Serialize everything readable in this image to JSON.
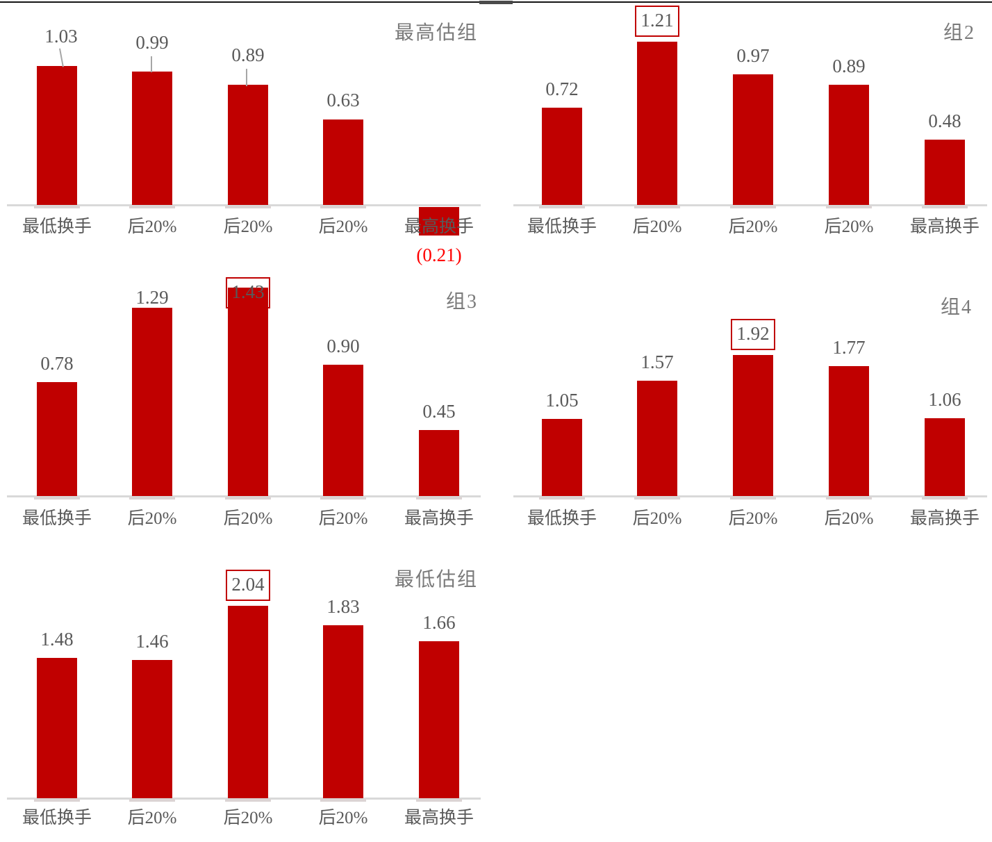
{
  "colors": {
    "bar_red": "#C00000",
    "highlight_box_border": "#C00000",
    "label_gray": "#595959",
    "title_gray": "#7A7A7A",
    "negative_red": "#FF0000",
    "axis_gray": "#D9D9D9",
    "bar_shadow_gray": "#DBD4D4",
    "leader_gray": "#A6A6A6",
    "top_rule_black": "#141414",
    "top_rule_segment_gray": "#4A4A4A"
  },
  "chart_data": [
    {
      "type": "bar",
      "title": "最高估组",
      "categories": [
        "最低换手",
        "后20%",
        "后20%",
        "后20%",
        "最高换手"
      ],
      "values": [
        1.03,
        0.99,
        0.89,
        0.63,
        -0.21
      ],
      "value_labels": [
        "1.03",
        "0.99",
        "0.89",
        "0.63",
        "(0.21)"
      ],
      "highlighted_box_index": null,
      "negative_index": 4,
      "leader_line_indices": [
        0,
        1,
        2
      ],
      "legend": "none",
      "grid": "off",
      "ylim": [
        -0.3,
        1.2
      ]
    },
    {
      "type": "bar",
      "title": "组2",
      "categories": [
        "最低换手",
        "后20%",
        "后20%",
        "后20%",
        "最高换手"
      ],
      "values": [
        0.72,
        1.21,
        0.97,
        0.89,
        0.48
      ],
      "value_labels": [
        "0.72",
        "1.21",
        "0.97",
        "0.89",
        "0.48"
      ],
      "highlighted_box_index": 1,
      "negative_index": null,
      "leader_line_indices": [],
      "legend": "none",
      "grid": "off",
      "ylim": [
        0,
        1.4
      ]
    },
    {
      "type": "bar",
      "title": "组3",
      "categories": [
        "最低换手",
        "后20%",
        "后20%",
        "后20%",
        "最高换手"
      ],
      "values": [
        0.78,
        1.29,
        1.43,
        0.9,
        0.45
      ],
      "value_labels": [
        "0.78",
        "1.29",
        "1.43",
        "0.90",
        "0.45"
      ],
      "highlighted_box_index": 2,
      "negative_index": null,
      "leader_line_indices": [],
      "legend": "none",
      "grid": "off",
      "ylim": [
        0,
        1.55
      ]
    },
    {
      "type": "bar",
      "title": "组4",
      "categories": [
        "最低换手",
        "后20%",
        "后20%",
        "后20%",
        "最高换手"
      ],
      "values": [
        1.05,
        1.57,
        1.92,
        1.77,
        1.06
      ],
      "value_labels": [
        "1.05",
        "1.57",
        "1.92",
        "1.77",
        "1.06"
      ],
      "highlighted_box_index": 2,
      "negative_index": null,
      "leader_line_indices": [],
      "legend": "none",
      "grid": "off",
      "ylim": [
        0,
        3.1
      ]
    },
    {
      "type": "bar",
      "title": "最低估组",
      "categories": [
        "最低换手",
        "后20%",
        "后20%",
        "后20%",
        "最高换手"
      ],
      "values": [
        1.48,
        1.46,
        2.04,
        1.83,
        1.66
      ],
      "value_labels": [
        "1.48",
        "1.46",
        "2.04",
        "1.83",
        "1.66"
      ],
      "highlighted_box_index": 2,
      "negative_index": null,
      "leader_line_indices": [],
      "legend": "none",
      "grid": "off",
      "ylim": [
        0,
        2.6
      ]
    }
  ]
}
